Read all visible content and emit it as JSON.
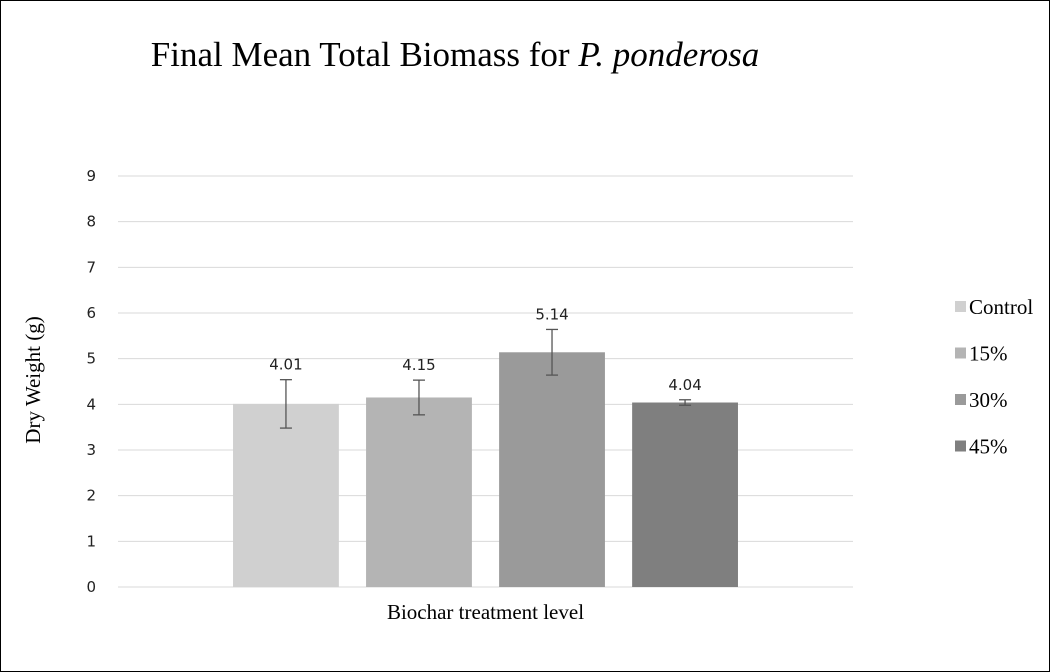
{
  "chart_data": {
    "type": "bar",
    "title": [
      "Final Mean Total Biomass for",
      "P. ponderosa"
    ],
    "y_label": "Dry Weight (g)",
    "categories": [
      "Biochar treatment level"
    ],
    "series": [
      {
        "name": "Control",
        "color": "#d0d0d0",
        "values": [
          4.01
        ],
        "errors": [
          0.53
        ]
      },
      {
        "name": "15%",
        "color": "#b4b4b4",
        "values": [
          4.15
        ],
        "errors": [
          0.38
        ]
      },
      {
        "name": "30%",
        "color": "#9a9a9a",
        "values": [
          5.14
        ],
        "errors": [
          0.5
        ]
      },
      {
        "name": "45%",
        "color": "#7f7f7f",
        "values": [
          4.04
        ],
        "errors": [
          0.06
        ]
      }
    ],
    "ylim": [
      0,
      9
    ],
    "yticks": [
      0,
      1,
      2,
      3,
      4,
      5,
      6,
      7,
      8,
      9
    ],
    "grid": true,
    "legend": "right"
  }
}
